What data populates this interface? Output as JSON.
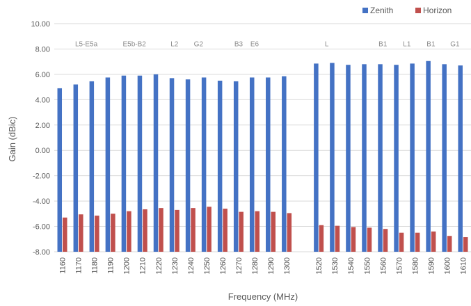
{
  "chart_data": {
    "type": "bar",
    "xlabel": "Frequency (MHz)",
    "ylabel": "Gain (dBic)",
    "ylim": [
      -8,
      10
    ],
    "ytick_step": 2,
    "ytick_labels": [
      "-8.00",
      "-6.00",
      "-4.00",
      "-2.00",
      "0.00",
      "2.00",
      "4.00",
      "6.00",
      "8.00",
      "10.00"
    ],
    "grid": true,
    "legend_position": "top-right",
    "categories": [
      "1160",
      "1170",
      "1180",
      "1190",
      "1200",
      "1210",
      "1220",
      "1230",
      "1240",
      "1250",
      "1260",
      "1270",
      "1280",
      "1290",
      "1300",
      "",
      "1520",
      "1530",
      "1540",
      "1550",
      "1560",
      "1570",
      "1580",
      "1590",
      "1600",
      "1610"
    ],
    "series": [
      {
        "name": "Zenith",
        "color": "#4472c4",
        "values": [
          4.9,
          5.2,
          5.45,
          5.75,
          5.9,
          5.9,
          6.0,
          5.7,
          5.6,
          5.75,
          5.5,
          5.45,
          5.75,
          5.75,
          5.85,
          null,
          6.85,
          6.9,
          6.75,
          6.8,
          6.8,
          6.75,
          6.85,
          7.05,
          6.8,
          6.7
        ]
      },
      {
        "name": "Horizon",
        "color": "#c0504d",
        "values": [
          -5.3,
          -5.05,
          -5.15,
          -5.0,
          -4.8,
          -4.65,
          -4.55,
          -4.7,
          -4.55,
          -4.45,
          -4.6,
          -4.85,
          -4.8,
          -4.85,
          -4.95,
          null,
          -5.9,
          -5.95,
          -6.05,
          -6.1,
          -6.2,
          -6.5,
          -6.5,
          -6.4,
          -6.75,
          -6.85
        ]
      }
    ],
    "annotations": [
      {
        "text": "L5-E5a",
        "x": "1175"
      },
      {
        "text": "E5b-B2",
        "x": "1205"
      },
      {
        "text": "L2",
        "x": "1230"
      },
      {
        "text": "G2",
        "x": "1245"
      },
      {
        "text": "B3",
        "x": "1270"
      },
      {
        "text": "E6",
        "x": "1280"
      },
      {
        "text": "L",
        "x": "1525"
      },
      {
        "text": "B1",
        "x": "1560"
      },
      {
        "text": "L1",
        "x": "1575"
      },
      {
        "text": "B1",
        "x": "1590"
      },
      {
        "text": "G1",
        "x": "1605"
      }
    ]
  }
}
